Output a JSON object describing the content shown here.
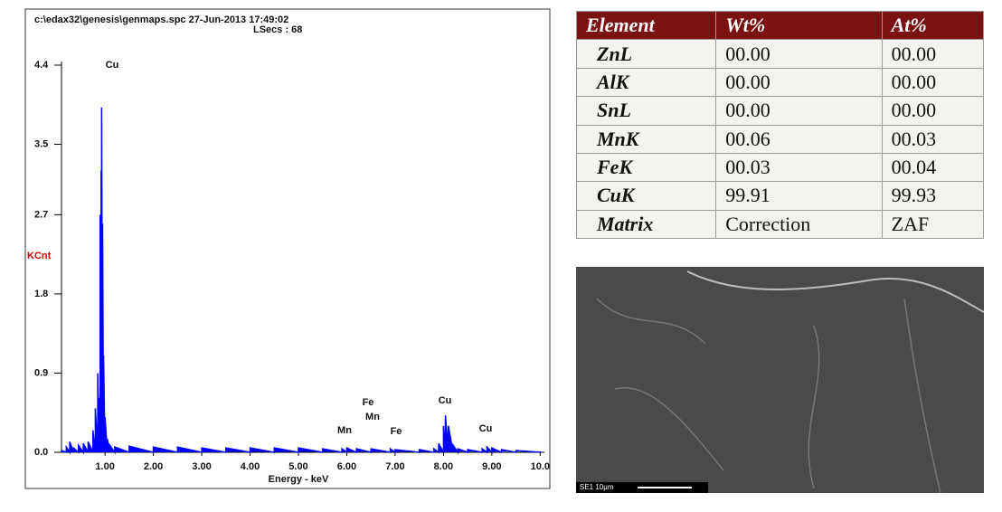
{
  "chart_data": {
    "type": "area",
    "title": "c:\\edax32\\genesis\\genmaps.spc  27-Jun-2013 17:49:02",
    "subtitle": "LSecs : 68",
    "x_label": "Energy - keV",
    "y_label": "KCnt",
    "color": "#0000ff",
    "x": [
      0.1,
      0.2,
      0.27,
      0.35,
      0.45,
      0.55,
      0.65,
      0.75,
      0.8,
      0.85,
      0.88,
      0.9,
      0.92,
      0.93,
      0.95,
      0.97,
      1.0,
      1.05,
      1.1,
      1.2,
      1.5,
      2.0,
      2.5,
      3.0,
      3.5,
      4.0,
      4.5,
      5.0,
      5.5,
      5.9,
      6.0,
      6.2,
      6.5,
      6.9,
      7.0,
      7.5,
      7.8,
      7.9,
      8.0,
      8.04,
      8.1,
      8.2,
      8.3,
      8.5,
      8.8,
      8.9,
      9.0,
      9.2,
      9.5,
      10.0
    ],
    "values": [
      0.02,
      0.06,
      0.12,
      0.05,
      0.08,
      0.1,
      0.12,
      0.25,
      0.5,
      0.9,
      0.62,
      2.7,
      3.2,
      3.92,
      2.6,
      1.1,
      0.4,
      0.15,
      0.08,
      0.06,
      0.07,
      0.06,
      0.06,
      0.05,
      0.05,
      0.05,
      0.05,
      0.05,
      0.04,
      0.04,
      0.05,
      0.04,
      0.04,
      0.04,
      0.03,
      0.03,
      0.04,
      0.1,
      0.3,
      0.42,
      0.3,
      0.08,
      0.04,
      0.03,
      0.04,
      0.06,
      0.05,
      0.03,
      0.02,
      0.01
    ],
    "xlim": [
      0.1,
      10.05
    ],
    "ylim": [
      0,
      4.4
    ],
    "xticks": [
      {
        "value": 1,
        "label": "1.00"
      },
      {
        "value": 2,
        "label": "2.00"
      },
      {
        "value": 3,
        "label": "3.00"
      },
      {
        "value": 4,
        "label": "4.00"
      },
      {
        "value": 5,
        "label": "5.00"
      },
      {
        "value": 6,
        "label": "6.00"
      },
      {
        "value": 7,
        "label": "7.00"
      },
      {
        "value": 8,
        "label": "8.00"
      },
      {
        "value": 9,
        "label": "9.00"
      },
      {
        "value": 10,
        "label": "10.0"
      }
    ],
    "yticks": [
      {
        "value": 0,
        "label": "0.0"
      },
      {
        "value": 0.9,
        "label": "0.9"
      },
      {
        "value": 1.8,
        "label": "1.8"
      },
      {
        "value": 2.7,
        "label": "2.7"
      },
      {
        "value": 3.5,
        "label": "3.5"
      },
      {
        "value": 4.4,
        "label": "4.4"
      }
    ],
    "annotations": [
      "Cu",
      "Fe",
      "Mn",
      "Mn",
      "Fe",
      "Cu",
      "Cu"
    ]
  },
  "table": {
    "header": [
      "Element",
      "Wt%",
      "At%"
    ],
    "rows": [
      [
        "ZnL",
        "00.00",
        "00.00"
      ],
      [
        "AlK",
        "00.00",
        "00.00"
      ],
      [
        "SnL",
        "00.00",
        "00.00"
      ],
      [
        "MnK",
        "00.06",
        "00.03"
      ],
      [
        "FeK",
        "00.03",
        "00.04"
      ],
      [
        "CuK",
        "99.91",
        "99.93"
      ],
      [
        "Matrix",
        "Correction",
        "ZAF"
      ]
    ]
  },
  "image": {
    "caption": "SE1  10µm"
  }
}
